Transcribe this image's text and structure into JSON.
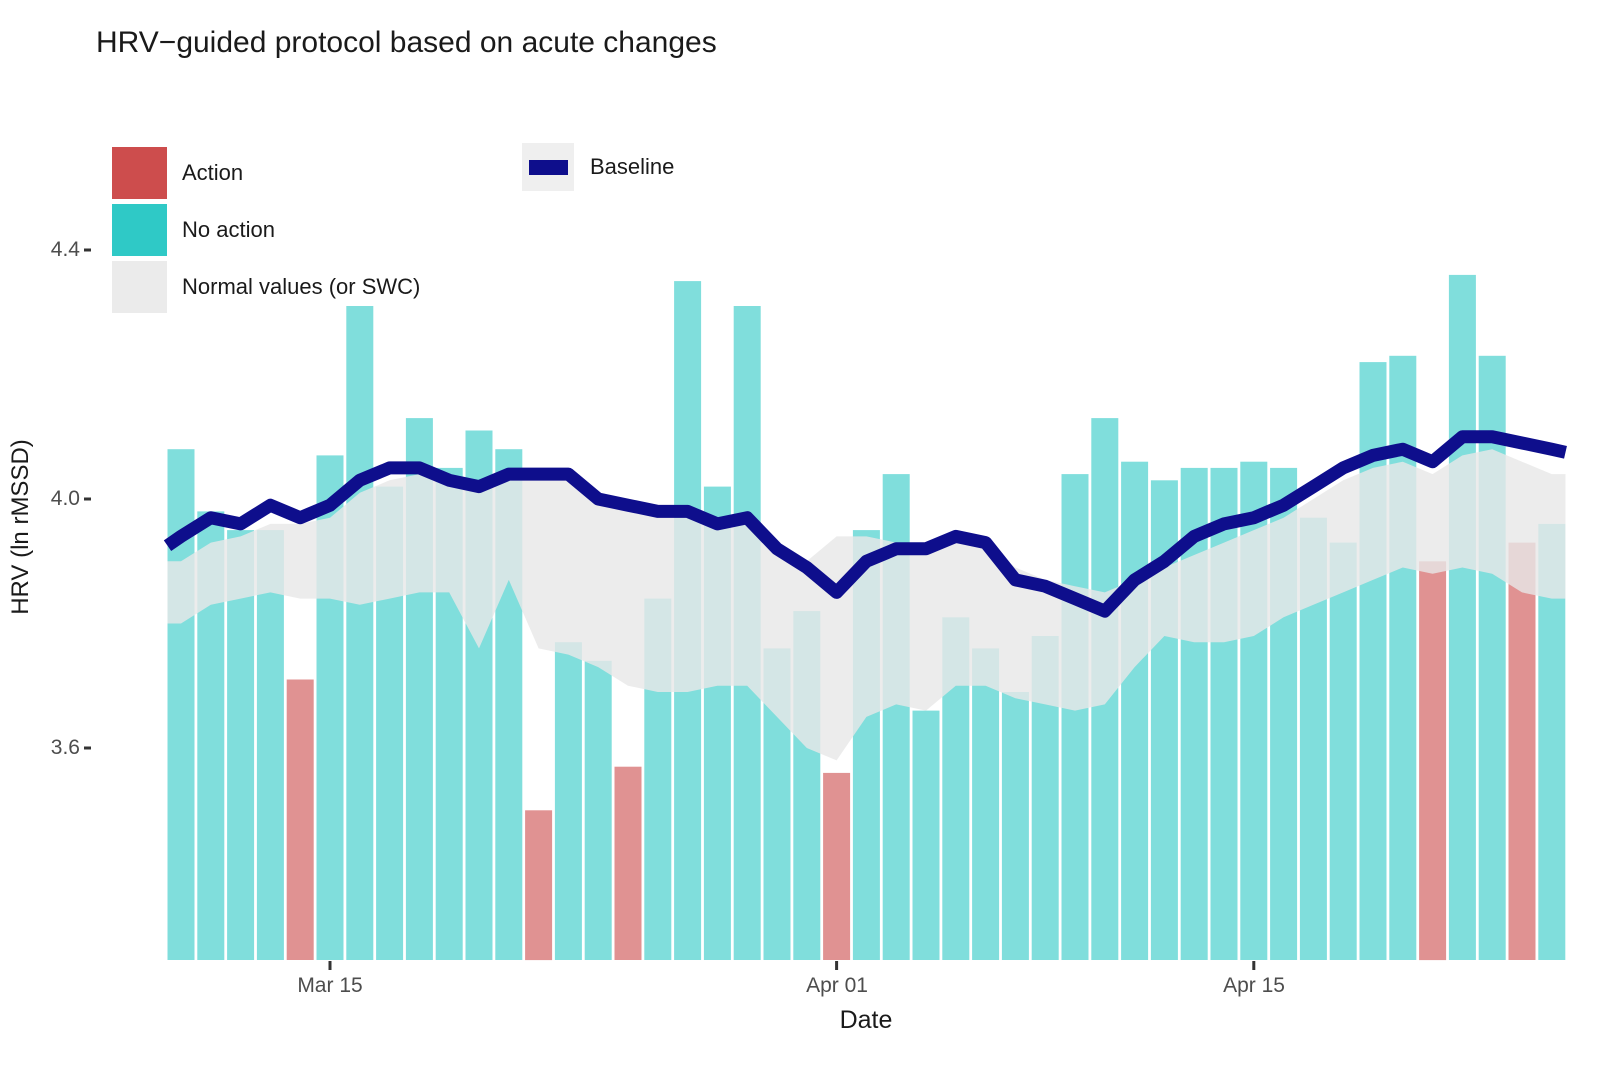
{
  "chart_data": {
    "type": "bar",
    "title": "HRV−guided protocol based on acute changes",
    "xlabel": "Date",
    "ylabel": "HRV (ln rMSSD)",
    "ylim": [
      3.26,
      4.45
    ],
    "grid": false,
    "legend_position": "top-left inset",
    "x": [
      "Mar 10",
      "Mar 11",
      "Mar 12",
      "Mar 13",
      "Mar 14",
      "Mar 15",
      "Mar 16",
      "Mar 17",
      "Mar 18",
      "Mar 19",
      "Mar 20",
      "Mar 21",
      "Mar 22",
      "Mar 23",
      "Mar 24",
      "Mar 25",
      "Mar 26",
      "Mar 27",
      "Mar 28",
      "Mar 29",
      "Mar 30",
      "Mar 31",
      "Apr 01",
      "Apr 02",
      "Apr 03",
      "Apr 04",
      "Apr 05",
      "Apr 06",
      "Apr 07",
      "Apr 08",
      "Apr 09",
      "Apr 10",
      "Apr 11",
      "Apr 12",
      "Apr 13",
      "Apr 14",
      "Apr 15",
      "Apr 16",
      "Apr 17",
      "Apr 18",
      "Apr 19",
      "Apr 20",
      "Apr 21",
      "Apr 22",
      "Apr 23",
      "Apr 24",
      "Apr 25"
    ],
    "x_ticks": [
      {
        "label": "Mar 15",
        "index": 5
      },
      {
        "label": "Apr 01",
        "index": 22
      },
      {
        "label": "Apr 15",
        "index": 36
      }
    ],
    "y_ticks": [
      {
        "label": "4.4",
        "value": 4.4
      },
      {
        "label": "4.0",
        "value": 4.0
      },
      {
        "label": "3.6",
        "value": 3.6
      }
    ],
    "series": [
      {
        "name": "Daily HRV",
        "type": "bar",
        "values": [
          4.08,
          3.98,
          3.95,
          3.95,
          3.71,
          4.07,
          4.31,
          4.02,
          4.13,
          4.05,
          4.11,
          4.08,
          3.5,
          3.77,
          3.74,
          3.57,
          3.84,
          4.35,
          4.02,
          4.31,
          3.76,
          3.82,
          3.56,
          3.95,
          4.04,
          3.66,
          3.81,
          3.76,
          3.69,
          3.78,
          4.04,
          4.13,
          4.06,
          4.03,
          4.05,
          4.05,
          4.06,
          4.05,
          3.97,
          3.93,
          4.22,
          4.23,
          3.9,
          4.36,
          4.23,
          3.93,
          3.96
        ],
        "action": [
          false,
          false,
          false,
          false,
          true,
          false,
          false,
          false,
          false,
          false,
          false,
          false,
          true,
          false,
          false,
          true,
          false,
          false,
          false,
          false,
          false,
          false,
          true,
          false,
          false,
          false,
          false,
          false,
          false,
          false,
          false,
          false,
          false,
          false,
          false,
          false,
          false,
          false,
          false,
          false,
          false,
          false,
          true,
          false,
          false,
          true,
          false
        ]
      },
      {
        "name": "Baseline",
        "type": "line",
        "values": [
          3.94,
          3.97,
          3.96,
          3.99,
          3.97,
          3.99,
          4.03,
          4.05,
          4.05,
          4.03,
          4.02,
          4.04,
          4.04,
          4.04,
          4.0,
          3.99,
          3.98,
          3.98,
          3.96,
          3.97,
          3.92,
          3.89,
          3.85,
          3.9,
          3.92,
          3.92,
          3.94,
          3.93,
          3.87,
          3.86,
          3.84,
          3.82,
          3.87,
          3.9,
          3.94,
          3.96,
          3.97,
          3.99,
          4.02,
          4.05,
          4.07,
          4.08,
          4.06,
          4.1,
          4.1,
          4.09,
          4.08
        ]
      },
      {
        "name": "Normal values (or SWC)",
        "type": "ribbon",
        "upper": [
          3.9,
          3.93,
          3.94,
          3.96,
          3.96,
          3.97,
          4.01,
          4.03,
          4.04,
          4.03,
          4.01,
          4.03,
          4.03,
          4.03,
          4.0,
          3.99,
          3.98,
          3.97,
          3.96,
          3.96,
          3.93,
          3.9,
          3.94,
          3.94,
          3.93,
          3.92,
          3.93,
          3.93,
          3.89,
          3.87,
          3.86,
          3.85,
          3.87,
          3.89,
          3.91,
          3.93,
          3.95,
          3.97,
          4.0,
          4.03,
          4.05,
          4.06,
          4.04,
          4.07,
          4.08,
          4.06,
          4.04
        ],
        "lower": [
          3.8,
          3.83,
          3.84,
          3.85,
          3.84,
          3.84,
          3.83,
          3.84,
          3.85,
          3.85,
          3.76,
          3.87,
          3.76,
          3.75,
          3.73,
          3.7,
          3.69,
          3.69,
          3.7,
          3.7,
          3.65,
          3.6,
          3.58,
          3.65,
          3.67,
          3.66,
          3.7,
          3.7,
          3.68,
          3.67,
          3.66,
          3.67,
          3.73,
          3.78,
          3.77,
          3.77,
          3.78,
          3.81,
          3.83,
          3.85,
          3.87,
          3.89,
          3.88,
          3.89,
          3.88,
          3.85,
          3.84
        ]
      }
    ]
  },
  "legend": {
    "items": [
      {
        "label": "Action",
        "color": "#cd4d4d",
        "kind": "fill"
      },
      {
        "label": "No action",
        "color": "#2fc9c6",
        "kind": "fill"
      },
      {
        "label": "Normal values (or SWC)",
        "color": "#ebebeb",
        "kind": "fill"
      },
      {
        "label": "Baseline",
        "color": "#0e0e8c",
        "kind": "line"
      }
    ]
  },
  "colors": {
    "action_bar": "#cd4d4d",
    "no_action_bar": "#2fc9c6",
    "bar_alpha": 0.61,
    "ribbon": "#e8e8e8",
    "ribbon_alpha": 0.81,
    "baseline_line": "#0e0e8c",
    "tick_mark": "#333333",
    "tick_text": "#4d4d4d",
    "title_text": "#1a1a1a"
  }
}
